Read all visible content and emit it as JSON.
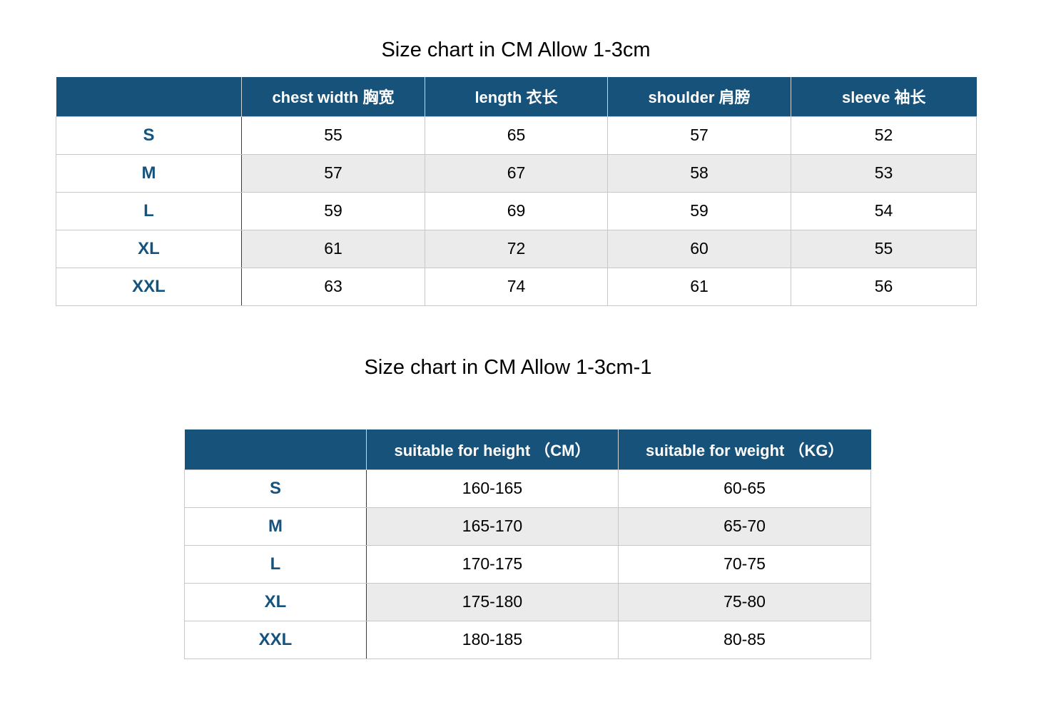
{
  "colors": {
    "header_bg": "#17527B",
    "header_text": "#FFFFFF",
    "size_label_text": "#15537D",
    "alt_row_bg": "#EBEBEB",
    "border_light": "#C8C8C8",
    "border_dark": "#3A3A3A",
    "body_text": "#000000",
    "page_bg": "#FFFFFF"
  },
  "chart_data": [
    {
      "type": "table",
      "title": "Size chart in CM Allow 1-3cm",
      "columns": [
        "",
        "chest width 胸宽",
        "length 衣长",
        "shoulder 肩膀",
        "sleeve 袖长"
      ],
      "rows": [
        [
          "S",
          55,
          65,
          57,
          52
        ],
        [
          "M",
          57,
          67,
          58,
          53
        ],
        [
          "L",
          59,
          69,
          59,
          54
        ],
        [
          "XL",
          61,
          72,
          60,
          55
        ],
        [
          "XXL",
          63,
          74,
          61,
          56
        ]
      ],
      "layout": "header row dark blue, size-label column white with bold blue text, data rows alternate white/light-gray"
    },
    {
      "type": "table",
      "title": "Size chart in CM Allow 1-3cm-1",
      "columns": [
        "",
        "suitable for height （CM）",
        "suitable for weight （KG）"
      ],
      "rows": [
        [
          "S",
          "160-165",
          "60-65"
        ],
        [
          "M",
          "165-170",
          "65-70"
        ],
        [
          "L",
          "170-175",
          "70-75"
        ],
        [
          "XL",
          "175-180",
          "75-80"
        ],
        [
          "XXL",
          "180-185",
          "80-85"
        ]
      ],
      "layout": "header row dark blue, size-label column white with bold blue text, data rows alternate white/light-gray"
    }
  ]
}
